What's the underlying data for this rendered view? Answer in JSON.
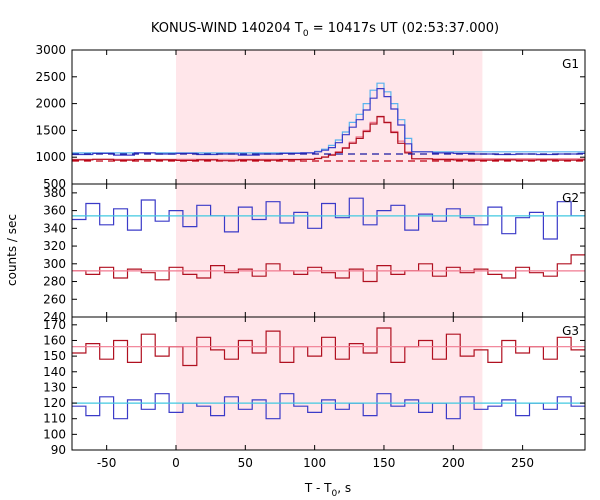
{
  "chart_data": {
    "type": "line",
    "title": {
      "main": "KONUS-WIND 140204 T",
      "sub": "0",
      "rest": " = 10417s UT (02:53:37.000)"
    },
    "xlabel": {
      "main": "T - T",
      "sub": "0",
      "rest": ", s"
    },
    "ylabel": "counts / sec",
    "xlim": [
      -75,
      295
    ],
    "x_ticks": [
      -50,
      0,
      50,
      100,
      150,
      200,
      250
    ],
    "highlight_interval": [
      0,
      221
    ],
    "colors": {
      "blue": "#3b3bc8",
      "red": "#b01020",
      "light_blue": "#5ab4ee",
      "pink": "#f07a90",
      "navy": "#1a1aa0",
      "crimson": "#c00010",
      "cyan": "#40c8e0",
      "region": "#ffe6ea"
    },
    "panels": [
      {
        "label": "G1",
        "ylim": [
          500,
          3000
        ],
        "y_ticks": [
          500,
          1000,
          1500,
          2000,
          2500,
          3000
        ],
        "y_tick_labels": [
          "500",
          "1000",
          "1500",
          "2000",
          "2500",
          "3000"
        ],
        "series": [
          {
            "color": "#5ab4ee",
            "style": "step",
            "x": [
              -75,
              95,
              100,
              105,
              110,
              115,
              120,
              125,
              130,
              135,
              140,
              145,
              150,
              155,
              160,
              165,
              170,
              295
            ],
            "y": [
              1080,
              1080,
              1110,
              1150,
              1220,
              1320,
              1470,
              1650,
              1800,
              2000,
              2250,
              2380,
              2220,
              2000,
              1700,
              1350,
              1100,
              1080
            ]
          },
          {
            "color": "#f07a90",
            "style": "step",
            "x": [
              -75,
              95,
              100,
              105,
              110,
              115,
              120,
              125,
              130,
              135,
              140,
              145,
              150,
              155,
              160,
              165,
              170,
              295
            ],
            "y": [
              960,
              960,
              980,
              1010,
              1050,
              1100,
              1180,
              1280,
              1380,
              1500,
              1650,
              1750,
              1640,
              1480,
              1300,
              1100,
              970,
              960
            ]
          },
          {
            "color": "#3b3bc8",
            "style": "step",
            "x": [
              -75,
              -60,
              -45,
              -30,
              -15,
              0,
              15,
              30,
              45,
              60,
              75,
              90,
              100,
              105,
              110,
              115,
              120,
              125,
              130,
              135,
              140,
              145,
              150,
              155,
              160,
              165,
              170,
              185,
              200,
              215,
              230,
              245,
              260,
              275,
              290
            ],
            "y": [
              1050,
              1070,
              1040,
              1080,
              1060,
              1070,
              1050,
              1060,
              1040,
              1060,
              1070,
              1080,
              1100,
              1130,
              1180,
              1270,
              1420,
              1560,
              1700,
              1880,
              2100,
              2280,
              2130,
              1900,
              1600,
              1250,
              1100,
              1080,
              1070,
              1060,
              1050,
              1060,
              1050,
              1060,
              1070
            ]
          },
          {
            "color": "#b01020",
            "style": "step",
            "x": [
              -75,
              -60,
              -45,
              -30,
              -15,
              0,
              15,
              30,
              45,
              60,
              75,
              90,
              100,
              105,
              110,
              115,
              120,
              125,
              130,
              135,
              140,
              145,
              150,
              155,
              160,
              165,
              170,
              185,
              200,
              215,
              230,
              245,
              260,
              275,
              290
            ],
            "y": [
              950,
              960,
              945,
              955,
              950,
              940,
              950,
              935,
              950,
              945,
              955,
              960,
              975,
              1000,
              1040,
              1090,
              1170,
              1260,
              1350,
              1480,
              1620,
              1760,
              1650,
              1460,
              1260,
              1080,
              970,
              955,
              950,
              945,
              950,
              945,
              950,
              945,
              950
            ]
          },
          {
            "color": "#1a1aa0",
            "style": "dashed",
            "x": [
              -75,
              295
            ],
            "y": [
              1060,
              1060
            ]
          },
          {
            "color": "#c00010",
            "style": "dashed",
            "x": [
              -75,
              295
            ],
            "y": [
              930,
              930
            ]
          }
        ]
      },
      {
        "label": "G2",
        "ylim": [
          240,
          390
        ],
        "y_ticks": [
          240,
          260,
          280,
          300,
          320,
          340,
          360,
          380
        ],
        "y_tick_labels": [
          "240",
          "260",
          "280",
          "300",
          "320",
          "340",
          "360",
          "380"
        ],
        "series": [
          {
            "color": "#3b3bc8",
            "style": "step",
            "x": [
              -75,
              -65,
              -55,
              -45,
              -35,
              -25,
              -15,
              -5,
              5,
              15,
              25,
              35,
              45,
              55,
              65,
              75,
              85,
              95,
              105,
              115,
              125,
              135,
              145,
              155,
              165,
              175,
              185,
              195,
              205,
              215,
              225,
              235,
              245,
              255,
              265,
              275,
              285
            ],
            "y": [
              350,
              368,
              344,
              362,
              338,
              372,
              348,
              360,
              342,
              366,
              354,
              336,
              364,
              350,
              370,
              346,
              358,
              340,
              368,
              352,
              374,
              344,
              360,
              366,
              338,
              356,
              348,
              362,
              352,
              344,
              364,
              334,
              352,
              358,
              328,
              370,
              354
            ]
          },
          {
            "color": "#b01020",
            "style": "step",
            "x": [
              -75,
              -65,
              -55,
              -45,
              -35,
              -25,
              -15,
              -5,
              5,
              15,
              25,
              35,
              45,
              55,
              65,
              75,
              85,
              95,
              105,
              115,
              125,
              135,
              145,
              155,
              165,
              175,
              185,
              195,
              205,
              215,
              225,
              235,
              245,
              255,
              265,
              275,
              285
            ],
            "y": [
              292,
              288,
              296,
              284,
              294,
              290,
              282,
              296,
              288,
              284,
              298,
              290,
              294,
              286,
              300,
              292,
              288,
              296,
              290,
              284,
              294,
              280,
              298,
              288,
              292,
              300,
              286,
              296,
              290,
              294,
              288,
              284,
              296,
              290,
              286,
              300,
              310
            ]
          },
          {
            "color": "#40c8e0",
            "style": "solid",
            "x": [
              -75,
              295
            ],
            "y": [
              354,
              354
            ]
          },
          {
            "color": "#f07a90",
            "style": "solid",
            "x": [
              -75,
              295
            ],
            "y": [
              292,
              292
            ]
          }
        ]
      },
      {
        "label": "G3",
        "ylim": [
          90,
          175
        ],
        "y_ticks": [
          90,
          100,
          110,
          120,
          130,
          140,
          150,
          160,
          170
        ],
        "y_tick_labels": [
          "90",
          "100",
          "110",
          "120",
          "130",
          "140",
          "150",
          "160",
          "170"
        ],
        "series": [
          {
            "color": "#b01020",
            "style": "step",
            "x": [
              -75,
              -65,
              -55,
              -45,
              -35,
              -25,
              -15,
              -5,
              5,
              15,
              25,
              35,
              45,
              55,
              65,
              75,
              85,
              95,
              105,
              115,
              125,
              135,
              145,
              155,
              165,
              175,
              185,
              195,
              205,
              215,
              225,
              235,
              245,
              255,
              265,
              275,
              285
            ],
            "y": [
              152,
              158,
              148,
              160,
              146,
              164,
              150,
              156,
              144,
              162,
              154,
              148,
              160,
              152,
              166,
              146,
              156,
              150,
              162,
              148,
              158,
              152,
              168,
              146,
              156,
              160,
              148,
              164,
              150,
              154,
              146,
              160,
              152,
              156,
              148,
              162,
              154
            ]
          },
          {
            "color": "#3b3bc8",
            "style": "step",
            "x": [
              -75,
              -65,
              -55,
              -45,
              -35,
              -25,
              -15,
              -5,
              5,
              15,
              25,
              35,
              45,
              55,
              65,
              75,
              85,
              95,
              105,
              115,
              125,
              135,
              145,
              155,
              165,
              175,
              185,
              195,
              205,
              215,
              225,
              235,
              245,
              255,
              265,
              275,
              285
            ],
            "y": [
              118,
              112,
              124,
              110,
              122,
              116,
              126,
              114,
              120,
              118,
              112,
              124,
              116,
              122,
              110,
              126,
              118,
              114,
              122,
              116,
              120,
              112,
              126,
              118,
              122,
              114,
              120,
              110,
              124,
              116,
              118,
              122,
              112,
              120,
              116,
              124,
              118
            ]
          },
          {
            "color": "#f07a90",
            "style": "solid",
            "x": [
              -75,
              295
            ],
            "y": [
              156,
              156
            ]
          },
          {
            "color": "#40c8e0",
            "style": "solid",
            "x": [
              -75,
              295
            ],
            "y": [
              120,
              120
            ]
          }
        ]
      }
    ]
  }
}
